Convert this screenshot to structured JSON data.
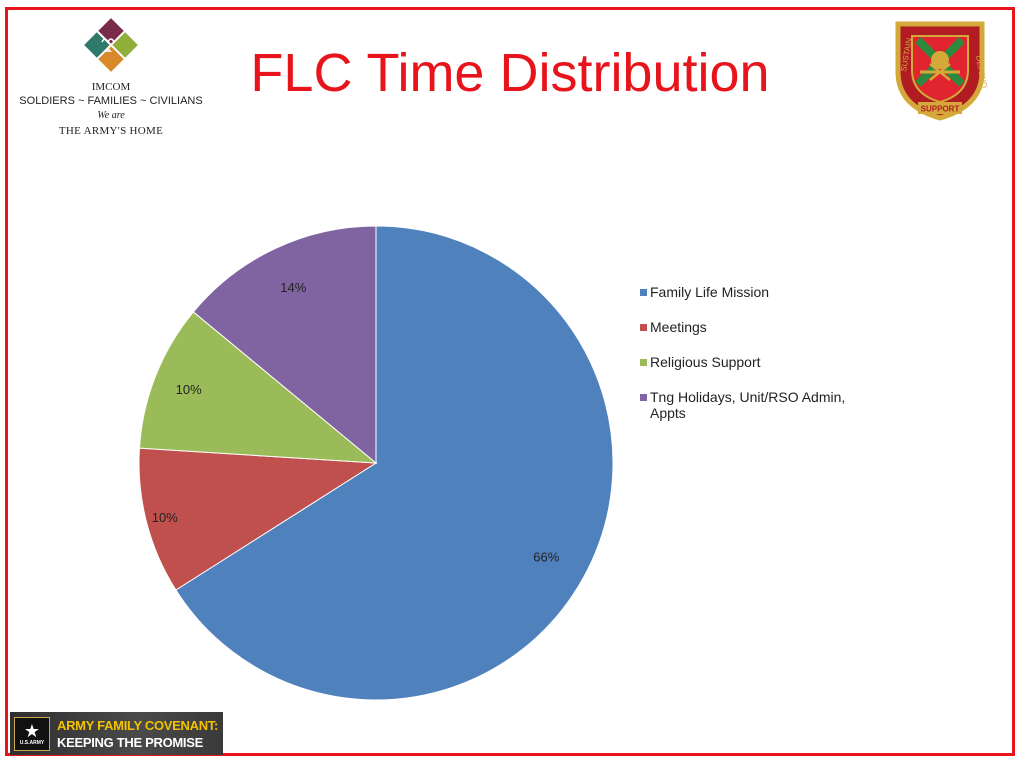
{
  "header": {
    "title": "FLC Time Distribution",
    "imcom": {
      "line1": "IMCOM",
      "line2": "SOLDIERS ~ FAMILIES ~ CIVILIANS",
      "line3": "We are",
      "line4": "THE ARMY'S HOME"
    },
    "crest_text": {
      "left": "SUSTAIN",
      "right": "DEFEND",
      "bottom": "SUPPORT"
    }
  },
  "footer": {
    "banner_line1": "ARMY FAMILY COVENANT:",
    "banner_line2": "KEEPING THE PROMISE",
    "badge_text": "U.S.ARMY"
  },
  "colors": {
    "accent": "#e8141b",
    "series": [
      "#4f81bd",
      "#c0504d",
      "#9bbb59",
      "#8064a2"
    ]
  },
  "chart_data": {
    "type": "pie",
    "title": "",
    "categories": [
      "Family Life Mission",
      "Meetings",
      "Religious Support",
      "Tng Holidays, Unit/RSO Admin, Appts"
    ],
    "values": [
      66,
      10,
      10,
      14
    ],
    "labels": [
      "66%",
      "10%",
      "10%",
      "14%"
    ],
    "start": "12 o'clock",
    "direction": "clockwise",
    "legend_position": "right"
  }
}
